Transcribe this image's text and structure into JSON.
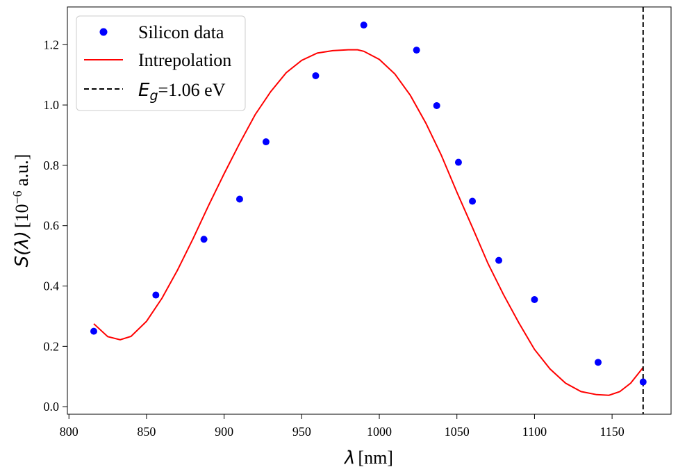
{
  "chart_data": {
    "type": "scatter",
    "xlabel": {
      "symbol": "λ",
      "unit": "[nm]"
    },
    "ylabel": {
      "symbol": "S(λ)",
      "unit_prefix": "[10",
      "unit_exp": "−6",
      "unit_suffix": " a.u.]"
    },
    "xlim": [
      799,
      1188
    ],
    "ylim": [
      -0.025,
      1.325
    ],
    "xticks": [
      800,
      850,
      900,
      950,
      1000,
      1050,
      1100,
      1150
    ],
    "yticks": [
      0.0,
      0.2,
      0.4,
      0.6,
      0.8,
      1.0,
      1.2
    ],
    "xtick_labels": [
      "800",
      "850",
      "900",
      "950",
      "1000",
      "1050",
      "1100",
      "1150"
    ],
    "ytick_labels": [
      "0.0",
      "0.2",
      "0.4",
      "0.6",
      "0.8",
      "1.0",
      "1.2"
    ],
    "grid": false,
    "legend_position": "top-left",
    "series": [
      {
        "name": "Silicon data",
        "kind": "scatter",
        "color": "#0000ff",
        "x": [
          816,
          856,
          887,
          910,
          927,
          959,
          990,
          1024,
          1037,
          1051,
          1060,
          1077,
          1100,
          1141,
          1170
        ],
        "y": [
          0.25,
          0.37,
          0.555,
          0.688,
          0.878,
          1.097,
          1.265,
          1.182,
          0.998,
          0.81,
          0.681,
          0.485,
          0.355,
          0.147,
          0.082
        ]
      },
      {
        "name": "Intrepolation",
        "kind": "line",
        "color": "#ff0000",
        "x": [
          816,
          825,
          833,
          840,
          850,
          860,
          870,
          880,
          890,
          900,
          910,
          920,
          930,
          940,
          950,
          960,
          970,
          980,
          986,
          990,
          1000,
          1010,
          1020,
          1030,
          1040,
          1050,
          1060,
          1070,
          1080,
          1090,
          1100,
          1110,
          1120,
          1130,
          1140,
          1148,
          1155,
          1162,
          1170
        ],
        "y": [
          0.275,
          0.232,
          0.222,
          0.233,
          0.283,
          0.36,
          0.453,
          0.557,
          0.667,
          0.772,
          0.873,
          0.968,
          1.044,
          1.107,
          1.148,
          1.172,
          1.18,
          1.183,
          1.183,
          1.178,
          1.151,
          1.103,
          1.032,
          0.94,
          0.833,
          0.711,
          0.594,
          0.475,
          0.372,
          0.277,
          0.19,
          0.125,
          0.078,
          0.05,
          0.04,
          0.038,
          0.05,
          0.078,
          0.13
        ]
      },
      {
        "name": "E_g=1.06 eV",
        "name_main": "E",
        "name_sub": "g",
        "name_rest": "=1.06 eV",
        "kind": "vline",
        "color": "#000000",
        "x": 1170
      }
    ]
  }
}
